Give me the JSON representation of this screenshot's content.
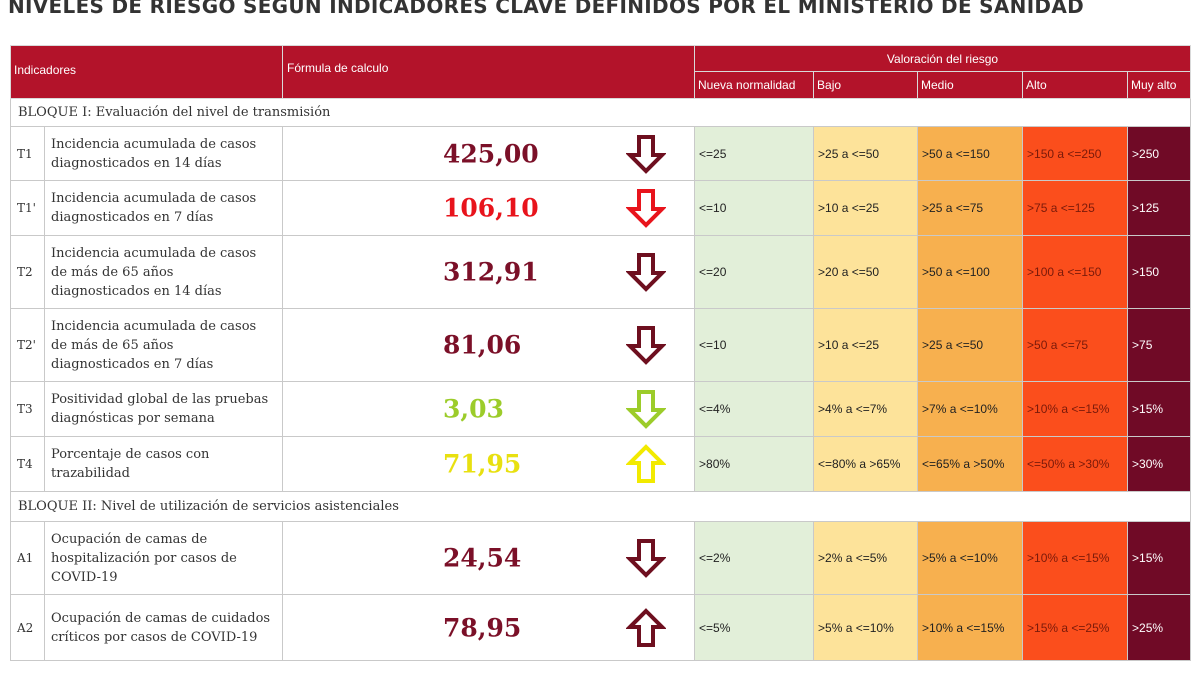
{
  "title": "NIVELES DE RIESGO SEGÚN INDICADORES CLAVE DEFINIDOS POR EL MINISTERIO DE SANIDAD",
  "headers": {
    "indicadores": "Indicadores",
    "formula": "Fórmula de calculo",
    "valoracion": "Valoración del riesgo",
    "levels": [
      "Nueva normalidad",
      "Bajo",
      "Medio",
      "Alto",
      "Muy alto"
    ]
  },
  "blocks": [
    {
      "title": "BLOQUE I: Evaluación del nivel de transmisión",
      "rows": [
        {
          "code": "T1",
          "name": "Incidencia acumulada de casos diagnosticados en 14 días",
          "value": "425,00",
          "value_color": "#7b1028",
          "arrow": "down",
          "arrow_color": "#6e0f1f",
          "levels": [
            "<=25",
            ">25 a <=50",
            ">50 a <=150",
            ">150 a <=250",
            ">250"
          ]
        },
        {
          "code": "T1'",
          "name": "Incidencia acumulada de casos diagnosticados en 7 días",
          "value": "106,10",
          "value_color": "#e8141c",
          "arrow": "down",
          "arrow_color": "#e8141c",
          "levels": [
            "<=10",
            ">10 a <=25",
            ">25 a <=75",
            ">75 a <=125",
            ">125"
          ]
        },
        {
          "code": "T2",
          "name": "Incidencia acumulada de casos de más de 65 años diagnosticados en 14 días",
          "value": "312,91",
          "value_color": "#7b1028",
          "arrow": "down",
          "arrow_color": "#6e0f1f",
          "levels": [
            "<=20",
            ">20 a <=50",
            ">50 a <=100",
            ">100 a <=150",
            ">150"
          ]
        },
        {
          "code": "T2'",
          "name": "Incidencia acumulada de casos de más de 65 años diagnosticados en 7 días",
          "value": "81,06",
          "value_color": "#7b1028",
          "arrow": "down",
          "arrow_color": "#6e0f1f",
          "levels": [
            "<=10",
            ">10 a <=25",
            ">25 a <=50",
            ">50 a <=75",
            ">75"
          ]
        },
        {
          "code": "T3",
          "name": "Positividad global de las pruebas diagnósticas por semana",
          "value": "3,03",
          "value_color": "#9ccc2a",
          "arrow": "down",
          "arrow_color": "#9ccc2a",
          "levels": [
            "<=4%",
            ">4% a <=7%",
            ">7% a <=10%",
            ">10% a <=15%",
            ">15%"
          ]
        },
        {
          "code": "T4",
          "name": "Porcentaje de casos con trazabilidad",
          "value": "71,95",
          "value_color": "#e8e010",
          "arrow": "up",
          "arrow_color": "#f2ea00",
          "levels": [
            ">80%",
            "<=80% a >65%",
            "<=65% a >50%",
            "<=50% a >30%",
            ">30%"
          ]
        }
      ]
    },
    {
      "title": "BLOQUE II: Nivel de utilización de servicios asistenciales",
      "rows": [
        {
          "code": "A1",
          "name": "Ocupación de camas de hospitalización por casos de COVID-19",
          "value": "24,54",
          "value_color": "#7b1028",
          "arrow": "down",
          "arrow_color": "#6e0f1f",
          "levels": [
            "<=2%",
            ">2% a <=5%",
            ">5% a <=10%",
            ">10% a <=15%",
            ">15%"
          ]
        },
        {
          "code": "A2",
          "name": "Ocupación de camas de cuidados críticos por casos de COVID-19",
          "value": "78,95",
          "value_color": "#7b1028",
          "arrow": "up",
          "arrow_color": "#6e0f1f",
          "levels": [
            "<=5%",
            ">5% a <=10%",
            ">10% a <=15%",
            ">15% a <=25%",
            ">25%"
          ]
        }
      ]
    }
  ]
}
